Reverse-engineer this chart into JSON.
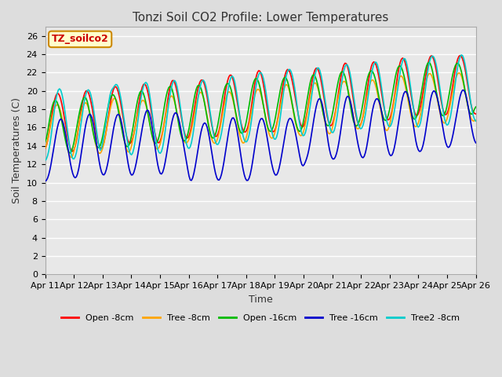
{
  "title": "Tonzi Soil CO2 Profile: Lower Temperatures",
  "xlabel": "Time",
  "ylabel": "Soil Temperatures (C)",
  "watermark": "TZ_soilco2",
  "ylim": [
    0,
    27
  ],
  "yticks": [
    0,
    2,
    4,
    6,
    8,
    10,
    12,
    14,
    16,
    18,
    20,
    22,
    24,
    26
  ],
  "xtick_labels": [
    "Apr 11",
    "Apr 12",
    "Apr 13",
    "Apr 14",
    "Apr 15",
    "Apr 16",
    "Apr 17",
    "Apr 18",
    "Apr 19",
    "Apr 20",
    "Apr 21",
    "Apr 22",
    "Apr 23",
    "Apr 24",
    "Apr 25",
    "Apr 26"
  ],
  "series": {
    "Open -8cm": {
      "color": "#ff0000",
      "lw": 1.2
    },
    "Tree -8cm": {
      "color": "#ffa500",
      "lw": 1.2
    },
    "Open -16cm": {
      "color": "#00bb00",
      "lw": 1.2
    },
    "Tree -16cm": {
      "color": "#0000cc",
      "lw": 1.2
    },
    "Tree2 -8cm": {
      "color": "#00cccc",
      "lw": 1.2
    }
  },
  "background_color": "#dddddd",
  "plot_bg_color": "#e8e8e8",
  "grid_color": "#ffffff",
  "title_fontsize": 11,
  "axis_label_fontsize": 9,
  "tick_fontsize": 8,
  "legend_fontsize": 8,
  "watermark_fontsize": 9,
  "watermark_bg": "#ffffcc",
  "watermark_border": "#cc8800",
  "watermark_text_color": "#cc0000"
}
